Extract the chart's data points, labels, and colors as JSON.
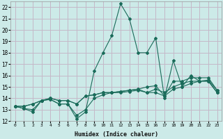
{
  "xlabel": "Humidex (Indice chaleur)",
  "background_color": "#cceae8",
  "grid_color": "#c4b8c8",
  "line_color": "#1a6b5a",
  "xlim": [
    -0.5,
    23.5
  ],
  "ylim": [
    12,
    22.5
  ],
  "xticks": [
    0,
    1,
    2,
    3,
    4,
    5,
    6,
    7,
    8,
    9,
    10,
    11,
    12,
    13,
    14,
    15,
    16,
    17,
    18,
    19,
    20,
    21,
    22,
    23
  ],
  "yticks": [
    12,
    13,
    14,
    15,
    16,
    17,
    18,
    19,
    20,
    21,
    22
  ],
  "series": [
    [
      13.3,
      13.1,
      12.8,
      13.8,
      13.9,
      13.5,
      13.5,
      12.2,
      12.8,
      16.4,
      18.0,
      19.5,
      22.3,
      21.0,
      18.0,
      18.0,
      19.3,
      14.0,
      17.3,
      15.0,
      16.0,
      15.5,
      15.5,
      14.5
    ],
    [
      13.3,
      13.3,
      13.5,
      13.8,
      14.0,
      13.8,
      13.8,
      13.5,
      14.2,
      14.3,
      14.5,
      14.5,
      14.6,
      14.7,
      14.8,
      15.0,
      15.1,
      14.2,
      15.5,
      15.5,
      15.8,
      15.8,
      15.8,
      14.7
    ],
    [
      13.3,
      13.3,
      13.5,
      13.8,
      14.0,
      13.8,
      13.8,
      13.5,
      14.2,
      14.3,
      14.5,
      14.5,
      14.6,
      14.7,
      14.8,
      14.5,
      14.8,
      14.5,
      15.0,
      15.3,
      15.5,
      15.5,
      15.6,
      14.7
    ],
    [
      13.3,
      13.1,
      13.0,
      13.8,
      13.9,
      13.5,
      13.5,
      12.5,
      13.0,
      14.0,
      14.3,
      14.5,
      14.5,
      14.6,
      14.7,
      14.5,
      14.5,
      14.2,
      14.8,
      15.0,
      15.3,
      15.5,
      15.5,
      14.5
    ]
  ],
  "marker": "D",
  "marker_size": 2.0,
  "linewidth": 0.8
}
